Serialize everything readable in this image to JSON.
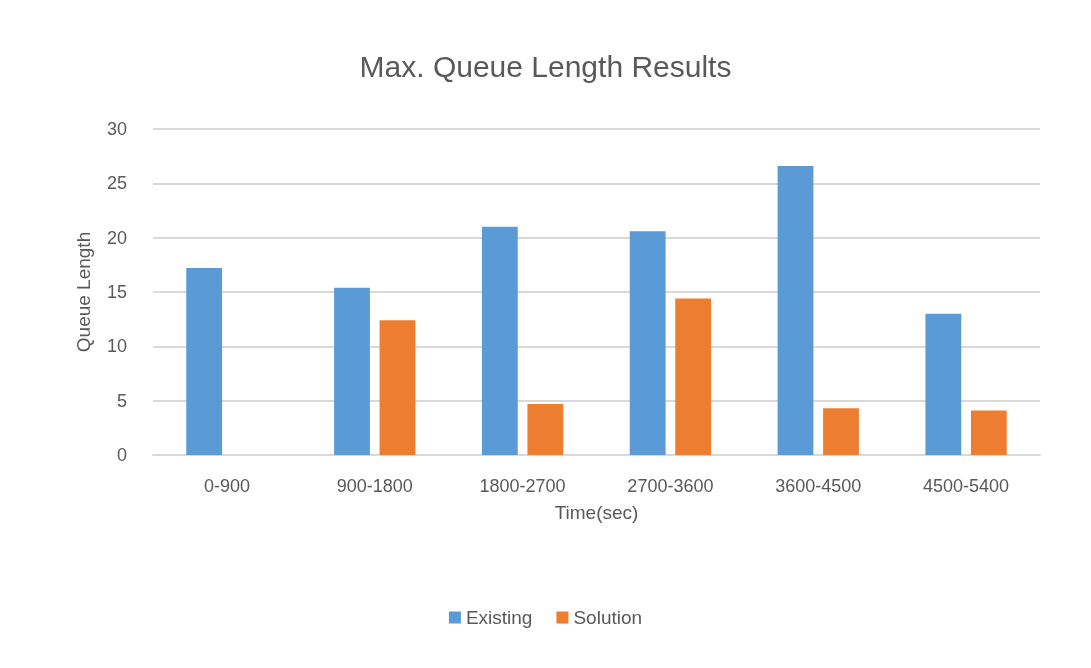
{
  "chart_data": {
    "type": "bar",
    "title": "Max. Queue Length Results",
    "xlabel": "Time(sec)",
    "ylabel": "Queue Length",
    "categories": [
      "0-900",
      "900-1800",
      "1800-2700",
      "2700-3600",
      "3600-4500",
      "4500-5400"
    ],
    "series": [
      {
        "name": "Existing",
        "color": "#5b9bd5",
        "values": [
          17.2,
          15.4,
          21.0,
          20.6,
          26.6,
          13.0
        ]
      },
      {
        "name": "Solution",
        "color": "#ed7d31",
        "values": [
          0,
          12.4,
          4.7,
          14.4,
          4.3,
          4.1
        ]
      }
    ],
    "ylim": [
      0,
      30
    ],
    "yticks": [
      0,
      5,
      10,
      15,
      20,
      25,
      30
    ],
    "grid": "y",
    "legend": "bottom"
  }
}
